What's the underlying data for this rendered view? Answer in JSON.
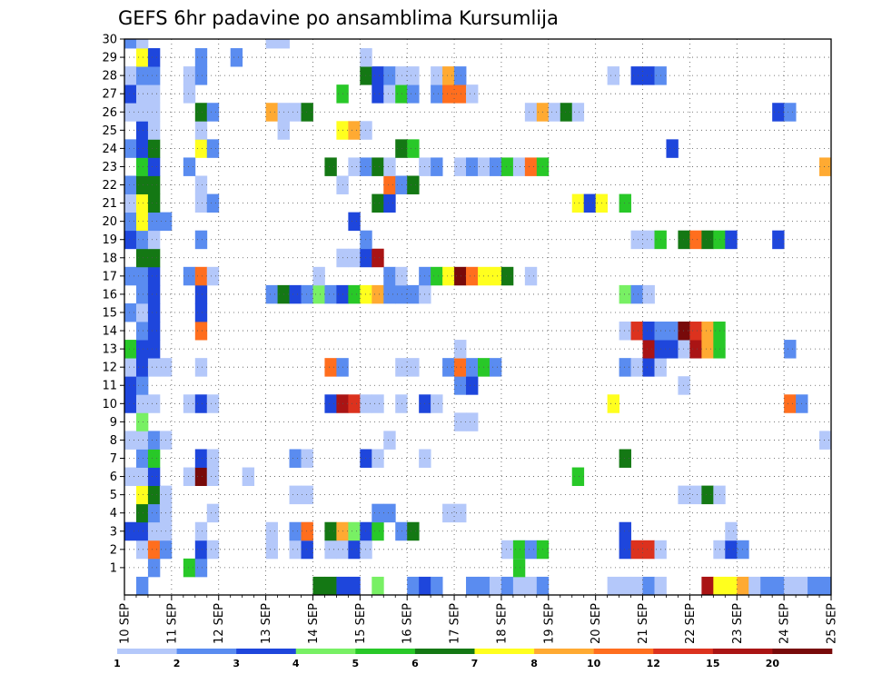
{
  "chart_data": {
    "type": "heatmap",
    "title": "GEFS 6hr padavine po ansamblima Kursumlija",
    "y_ticks": [
      "1",
      "2",
      "3",
      "4",
      "5",
      "6",
      "7",
      "8",
      "9",
      "10",
      "11",
      "12",
      "13",
      "14",
      "15",
      "16",
      "17",
      "18",
      "19",
      "20",
      "21",
      "22",
      "23",
      "24",
      "25",
      "26",
      "27",
      "28",
      "29",
      "30"
    ],
    "x_ticks": [
      "10 SEP",
      "11 SEP",
      "12 SEP",
      "13 SEP",
      "14 SEP",
      "15 SEP",
      "16 SEP",
      "17 SEP",
      "18 SEP",
      "19 SEP",
      "20 SEP",
      "21 SEP",
      "22 SEP",
      "23 SEP",
      "24 SEP",
      "25 SEP"
    ],
    "x_range": [
      "10 SEP",
      "25 SEP"
    ],
    "time_step_hours": 6,
    "grid": true,
    "legend_position": "bottom",
    "colorbar": {
      "labels": [
        "1",
        "2",
        "3",
        "4",
        "5",
        "6",
        "7",
        "8",
        "10",
        "12",
        "15",
        "20"
      ],
      "colors": [
        "#b4c8fa",
        "#5a8cf0",
        "#1e46dc",
        "#78f064",
        "#28c828",
        "#147814",
        "#ffff1e",
        "#ffaa32",
        "#ff6e1e",
        "#dc321e",
        "#aa1414",
        "#780a0a"
      ]
    },
    "cells": [
      [
        0,
        1,
        2
      ],
      [
        0,
        16,
        6
      ],
      [
        0,
        17,
        6
      ],
      [
        0,
        18,
        3
      ],
      [
        0,
        19,
        3
      ],
      [
        0,
        21,
        4
      ],
      [
        0,
        24,
        2
      ],
      [
        0,
        25,
        3
      ],
      [
        0,
        26,
        2
      ],
      [
        0,
        29,
        2
      ],
      [
        0,
        30,
        2
      ],
      [
        0,
        31,
        1
      ],
      [
        0,
        32,
        2
      ],
      [
        0,
        33,
        1
      ],
      [
        0,
        34,
        1
      ],
      [
        0,
        35,
        2
      ],
      [
        0,
        41,
        1
      ],
      [
        0,
        42,
        1
      ],
      [
        0,
        43,
        1
      ],
      [
        0,
        44,
        2
      ],
      [
        0,
        45,
        1
      ],
      [
        0,
        49,
        11
      ],
      [
        0,
        50,
        7
      ],
      [
        0,
        51,
        7
      ],
      [
        0,
        52,
        8
      ],
      [
        0,
        53,
        1
      ],
      [
        0,
        54,
        2
      ],
      [
        0,
        55,
        2
      ],
      [
        0,
        56,
        1
      ],
      [
        0,
        57,
        1
      ],
      [
        0,
        58,
        2
      ],
      [
        0,
        59,
        2
      ],
      [
        0,
        60,
        1
      ],
      [
        1,
        2,
        2
      ],
      [
        1,
        5,
        5
      ],
      [
        1,
        6,
        2
      ],
      [
        1,
        33,
        5
      ],
      [
        2,
        1,
        1
      ],
      [
        2,
        2,
        9
      ],
      [
        2,
        3,
        2
      ],
      [
        2,
        6,
        3
      ],
      [
        2,
        7,
        1
      ],
      [
        2,
        12,
        1
      ],
      [
        2,
        14,
        1
      ],
      [
        2,
        15,
        3
      ],
      [
        2,
        17,
        1
      ],
      [
        2,
        18,
        1
      ],
      [
        2,
        19,
        3
      ],
      [
        2,
        20,
        1
      ],
      [
        2,
        32,
        1
      ],
      [
        2,
        33,
        1
      ],
      [
        2,
        33,
        5
      ],
      [
        2,
        34,
        2
      ],
      [
        2,
        35,
        5
      ],
      [
        2,
        41,
        13
      ],
      [
        2,
        42,
        3
      ],
      [
        2,
        43,
        10
      ],
      [
        2,
        44,
        10
      ],
      [
        2,
        45,
        1
      ],
      [
        2,
        50,
        1
      ],
      [
        2,
        51,
        3
      ],
      [
        2,
        52,
        2
      ],
      [
        3,
        0,
        3
      ],
      [
        3,
        1,
        3
      ],
      [
        3,
        2,
        1
      ],
      [
        3,
        3,
        1
      ],
      [
        3,
        6,
        1
      ],
      [
        3,
        12,
        1
      ],
      [
        3,
        14,
        2
      ],
      [
        3,
        15,
        1
      ],
      [
        3,
        15,
        9
      ],
      [
        3,
        17,
        6
      ],
      [
        3,
        18,
        8
      ],
      [
        3,
        19,
        4
      ],
      [
        3,
        20,
        3
      ],
      [
        3,
        21,
        5
      ],
      [
        3,
        23,
        2
      ],
      [
        3,
        24,
        6
      ],
      [
        3,
        42,
        3
      ],
      [
        3,
        51,
        1
      ],
      [
        4,
        1,
        6
      ],
      [
        4,
        2,
        2
      ],
      [
        4,
        3,
        1
      ],
      [
        4,
        7,
        1
      ],
      [
        4,
        21,
        2
      ],
      [
        4,
        22,
        2
      ],
      [
        4,
        27,
        1
      ],
      [
        4,
        28,
        1
      ],
      [
        5,
        1,
        7
      ],
      [
        5,
        2,
        6
      ],
      [
        5,
        3,
        1
      ],
      [
        5,
        14,
        1
      ],
      [
        5,
        15,
        1
      ],
      [
        5,
        47,
        1
      ],
      [
        5,
        48,
        1
      ],
      [
        5,
        49,
        6
      ],
      [
        5,
        50,
        1
      ],
      [
        6,
        0,
        1
      ],
      [
        6,
        1,
        1
      ],
      [
        6,
        2,
        3
      ],
      [
        6,
        5,
        1
      ],
      [
        6,
        6,
        12
      ],
      [
        6,
        7,
        1
      ],
      [
        6,
        10,
        1
      ],
      [
        6,
        38,
        5
      ],
      [
        7,
        1,
        2
      ],
      [
        7,
        2,
        5
      ],
      [
        7,
        6,
        3
      ],
      [
        7,
        7,
        1
      ],
      [
        7,
        14,
        2
      ],
      [
        7,
        15,
        1
      ],
      [
        7,
        20,
        3
      ],
      [
        7,
        21,
        1
      ],
      [
        7,
        25,
        1
      ],
      [
        7,
        42,
        6
      ],
      [
        8,
        0,
        1
      ],
      [
        8,
        1,
        1
      ],
      [
        8,
        2,
        2
      ],
      [
        8,
        3,
        1
      ],
      [
        8,
        22,
        1
      ],
      [
        8,
        59,
        1
      ],
      [
        8,
        60,
        1
      ],
      [
        8,
        61,
        7
      ],
      [
        8,
        62,
        6
      ],
      [
        9,
        1,
        4
      ],
      [
        9,
        28,
        1
      ],
      [
        9,
        29,
        1
      ],
      [
        10,
        0,
        3
      ],
      [
        10,
        1,
        1
      ],
      [
        10,
        2,
        1
      ],
      [
        10,
        5,
        1
      ],
      [
        10,
        6,
        3
      ],
      [
        10,
        7,
        1
      ],
      [
        10,
        17,
        3
      ],
      [
        10,
        18,
        11
      ],
      [
        10,
        19,
        10
      ],
      [
        10,
        20,
        1
      ],
      [
        10,
        21,
        1
      ],
      [
        10,
        23,
        1
      ],
      [
        10,
        25,
        3
      ],
      [
        10,
        26,
        1
      ],
      [
        10,
        41,
        7
      ],
      [
        10,
        56,
        9
      ],
      [
        10,
        57,
        2
      ],
      [
        10,
        60,
        2
      ],
      [
        10,
        61,
        6
      ],
      [
        11,
        0,
        3
      ],
      [
        11,
        1,
        2
      ],
      [
        11,
        28,
        2
      ],
      [
        11,
        29,
        3
      ],
      [
        11,
        47,
        1
      ],
      [
        12,
        0,
        1
      ],
      [
        12,
        1,
        3
      ],
      [
        12,
        2,
        1
      ],
      [
        12,
        3,
        1
      ],
      [
        12,
        6,
        1
      ],
      [
        12,
        17,
        9
      ],
      [
        12,
        18,
        2
      ],
      [
        12,
        23,
        1
      ],
      [
        12,
        24,
        1
      ],
      [
        12,
        27,
        2
      ],
      [
        12,
        28,
        9
      ],
      [
        12,
        29,
        2
      ],
      [
        12,
        30,
        5
      ],
      [
        12,
        31,
        2
      ],
      [
        12,
        42,
        2
      ],
      [
        12,
        43,
        1
      ],
      [
        12,
        44,
        3
      ],
      [
        12,
        45,
        1
      ],
      [
        13,
        0,
        5
      ],
      [
        13,
        1,
        3
      ],
      [
        13,
        2,
        3
      ],
      [
        13,
        28,
        1
      ],
      [
        13,
        44,
        11
      ],
      [
        13,
        45,
        3
      ],
      [
        13,
        46,
        3
      ],
      [
        13,
        47,
        1
      ],
      [
        13,
        48,
        11
      ],
      [
        13,
        49,
        8
      ],
      [
        13,
        50,
        5
      ],
      [
        13,
        56,
        2
      ],
      [
        14,
        1,
        2
      ],
      [
        14,
        2,
        3
      ],
      [
        14,
        6,
        9
      ],
      [
        14,
        42,
        1
      ],
      [
        14,
        43,
        10
      ],
      [
        14,
        44,
        3
      ],
      [
        14,
        45,
        2
      ],
      [
        14,
        46,
        2
      ],
      [
        14,
        47,
        12
      ],
      [
        14,
        48,
        10
      ],
      [
        14,
        49,
        8
      ],
      [
        14,
        50,
        5
      ],
      [
        15,
        0,
        2
      ],
      [
        15,
        1,
        1
      ],
      [
        15,
        2,
        3
      ],
      [
        15,
        6,
        3
      ],
      [
        16,
        1,
        2
      ],
      [
        16,
        2,
        3
      ],
      [
        16,
        6,
        3
      ],
      [
        16,
        12,
        2
      ],
      [
        16,
        13,
        6
      ],
      [
        16,
        14,
        3
      ],
      [
        16,
        15,
        2
      ],
      [
        16,
        16,
        4
      ],
      [
        16,
        17,
        2
      ],
      [
        16,
        18,
        3
      ],
      [
        16,
        19,
        5
      ],
      [
        16,
        20,
        7
      ],
      [
        16,
        21,
        8
      ],
      [
        16,
        22,
        2
      ],
      [
        16,
        23,
        2
      ],
      [
        16,
        24,
        2
      ],
      [
        16,
        25,
        1
      ],
      [
        16,
        42,
        4
      ],
      [
        16,
        43,
        2
      ],
      [
        16,
        44,
        1
      ],
      [
        17,
        0,
        2
      ],
      [
        17,
        1,
        2
      ],
      [
        17,
        2,
        3
      ],
      [
        17,
        5,
        2
      ],
      [
        17,
        6,
        9
      ],
      [
        17,
        7,
        1
      ],
      [
        17,
        16,
        1
      ],
      [
        17,
        22,
        2
      ],
      [
        17,
        23,
        1
      ],
      [
        17,
        25,
        2
      ],
      [
        17,
        26,
        5
      ],
      [
        17,
        27,
        7
      ],
      [
        17,
        28,
        12
      ],
      [
        17,
        29,
        9
      ],
      [
        17,
        30,
        7
      ],
      [
        17,
        31,
        7
      ],
      [
        17,
        32,
        6
      ],
      [
        17,
        34,
        1
      ],
      [
        18,
        1,
        6
      ],
      [
        18,
        2,
        6
      ],
      [
        18,
        18,
        1
      ],
      [
        18,
        19,
        1
      ],
      [
        18,
        20,
        3
      ],
      [
        18,
        21,
        11
      ],
      [
        19,
        0,
        3
      ],
      [
        19,
        1,
        2
      ],
      [
        19,
        2,
        1
      ],
      [
        19,
        6,
        2
      ],
      [
        19,
        20,
        2
      ],
      [
        19,
        43,
        1
      ],
      [
        19,
        44,
        1
      ],
      [
        19,
        45,
        5
      ],
      [
        19,
        47,
        6
      ],
      [
        19,
        48,
        9
      ],
      [
        19,
        49,
        6
      ],
      [
        19,
        50,
        5
      ],
      [
        19,
        51,
        3
      ],
      [
        19,
        55,
        3
      ],
      [
        20,
        0,
        2
      ],
      [
        20,
        1,
        7
      ],
      [
        20,
        2,
        2
      ],
      [
        20,
        3,
        2
      ],
      [
        20,
        19,
        3
      ],
      [
        21,
        0,
        1
      ],
      [
        21,
        1,
        7
      ],
      [
        21,
        2,
        6
      ],
      [
        21,
        6,
        1
      ],
      [
        21,
        7,
        2
      ],
      [
        21,
        21,
        6
      ],
      [
        21,
        22,
        3
      ],
      [
        21,
        38,
        7
      ],
      [
        21,
        39,
        3
      ],
      [
        21,
        40,
        7
      ],
      [
        21,
        42,
        5
      ],
      [
        22,
        0,
        2
      ],
      [
        22,
        1,
        6
      ],
      [
        22,
        2,
        6
      ],
      [
        22,
        6,
        1
      ],
      [
        22,
        18,
        1
      ],
      [
        22,
        22,
        9
      ],
      [
        22,
        23,
        2
      ],
      [
        22,
        24,
        6
      ],
      [
        23,
        1,
        5
      ],
      [
        23,
        2,
        3
      ],
      [
        23,
        5,
        2
      ],
      [
        23,
        17,
        6
      ],
      [
        23,
        19,
        1
      ],
      [
        23,
        20,
        2
      ],
      [
        23,
        21,
        6
      ],
      [
        23,
        22,
        1
      ],
      [
        23,
        25,
        1
      ],
      [
        23,
        26,
        2
      ],
      [
        23,
        28,
        1
      ],
      [
        23,
        29,
        2
      ],
      [
        23,
        30,
        1
      ],
      [
        23,
        31,
        2
      ],
      [
        23,
        32,
        5
      ],
      [
        23,
        33,
        1
      ],
      [
        23,
        34,
        9
      ],
      [
        23,
        35,
        5
      ],
      [
        23,
        59,
        8
      ],
      [
        23,
        60,
        5
      ],
      [
        24,
        0,
        2
      ],
      [
        24,
        1,
        3
      ],
      [
        24,
        2,
        6
      ],
      [
        24,
        6,
        7
      ],
      [
        24,
        7,
        2
      ],
      [
        24,
        23,
        6
      ],
      [
        24,
        24,
        5
      ],
      [
        24,
        46,
        3
      ],
      [
        25,
        1,
        3
      ],
      [
        25,
        2,
        1
      ],
      [
        25,
        6,
        1
      ],
      [
        25,
        13,
        1
      ],
      [
        25,
        18,
        7
      ],
      [
        25,
        19,
        8
      ],
      [
        25,
        20,
        1
      ],
      [
        26,
        0,
        1
      ],
      [
        26,
        1,
        1
      ],
      [
        26,
        2,
        1
      ],
      [
        26,
        6,
        6
      ],
      [
        26,
        7,
        2
      ],
      [
        26,
        12,
        8
      ],
      [
        26,
        13,
        1
      ],
      [
        26,
        14,
        1
      ],
      [
        26,
        15,
        6
      ],
      [
        26,
        34,
        1
      ],
      [
        26,
        35,
        8
      ],
      [
        26,
        36,
        1
      ],
      [
        26,
        37,
        6
      ],
      [
        26,
        38,
        1
      ],
      [
        26,
        55,
        3
      ],
      [
        26,
        56,
        2
      ],
      [
        27,
        0,
        3
      ],
      [
        27,
        1,
        1
      ],
      [
        27,
        2,
        1
      ],
      [
        27,
        5,
        1
      ],
      [
        27,
        18,
        5
      ],
      [
        27,
        21,
        3
      ],
      [
        27,
        22,
        1
      ],
      [
        27,
        23,
        5
      ],
      [
        27,
        24,
        2
      ],
      [
        27,
        26,
        2
      ],
      [
        27,
        27,
        9
      ],
      [
        27,
        28,
        9
      ],
      [
        27,
        29,
        1
      ],
      [
        28,
        0,
        1
      ],
      [
        28,
        1,
        2
      ],
      [
        28,
        2,
        2
      ],
      [
        28,
        5,
        1
      ],
      [
        28,
        6,
        2
      ],
      [
        28,
        20,
        6
      ],
      [
        28,
        21,
        3
      ],
      [
        28,
        22,
        2
      ],
      [
        28,
        23,
        1
      ],
      [
        28,
        24,
        1
      ],
      [
        28,
        26,
        1
      ],
      [
        28,
        27,
        8
      ],
      [
        28,
        28,
        2
      ],
      [
        28,
        41,
        1
      ],
      [
        28,
        43,
        3
      ],
      [
        28,
        44,
        3
      ],
      [
        28,
        45,
        2
      ],
      [
        29,
        1,
        7
      ],
      [
        29,
        2,
        3
      ],
      [
        29,
        6,
        2
      ],
      [
        29,
        9,
        2
      ],
      [
        29,
        20,
        1
      ],
      [
        30,
        0,
        2
      ],
      [
        30,
        1,
        1
      ],
      [
        30,
        12,
        1
      ],
      [
        30,
        13,
        1
      ]
    ]
  }
}
